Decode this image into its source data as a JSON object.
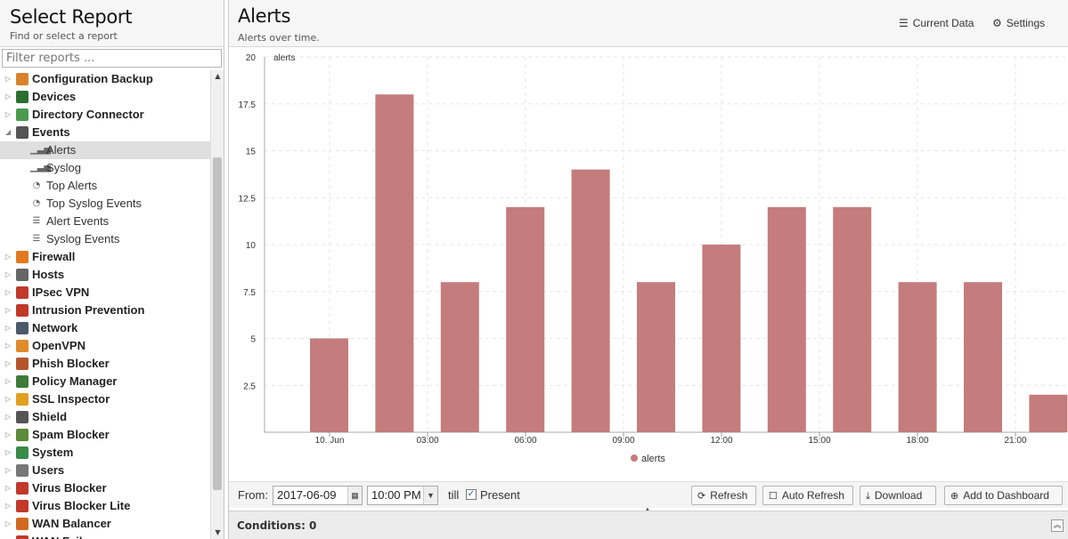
{
  "left": {
    "title": "Select Report",
    "subtitle": "Find or select a report",
    "filter_placeholder": "Filter reports ...",
    "items": [
      {
        "label": "Configuration Backup",
        "level": "top",
        "expanded": false,
        "color": "#d9822b",
        "icon": "backup-icon"
      },
      {
        "label": "Devices",
        "level": "top",
        "expanded": false,
        "color": "#2c6e2f",
        "icon": "devices-icon"
      },
      {
        "label": "Directory Connector",
        "level": "top",
        "expanded": false,
        "color": "#4a9b4f",
        "icon": "directory-icon"
      },
      {
        "label": "Events",
        "level": "top",
        "expanded": true,
        "color": "#555555",
        "icon": "events-icon"
      },
      {
        "label": "Alerts",
        "level": "child",
        "selected": true,
        "glyph": "▁▃▅",
        "icon": "bar-chart-icon"
      },
      {
        "label": "Syslog",
        "level": "child",
        "glyph": "▁▃▅",
        "icon": "bar-chart-icon"
      },
      {
        "label": "Top Alerts",
        "level": "child",
        "glyph": "◔",
        "icon": "pie-chart-icon"
      },
      {
        "label": "Top Syslog Events",
        "level": "child",
        "glyph": "◔",
        "icon": "pie-chart-icon"
      },
      {
        "label": "Alert Events",
        "level": "child",
        "glyph": "☰",
        "icon": "list-icon"
      },
      {
        "label": "Syslog Events",
        "level": "child",
        "glyph": "☰",
        "icon": "list-icon"
      },
      {
        "label": "Firewall",
        "level": "top",
        "expanded": false,
        "color": "#e27a1f",
        "icon": "firewall-icon"
      },
      {
        "label": "Hosts",
        "level": "top",
        "expanded": false,
        "color": "#666666",
        "icon": "hosts-icon"
      },
      {
        "label": "IPsec VPN",
        "level": "top",
        "expanded": false,
        "color": "#c0392b",
        "icon": "lock-icon"
      },
      {
        "label": "Intrusion Prevention",
        "level": "top",
        "expanded": false,
        "color": "#c0392b",
        "icon": "intrusion-icon"
      },
      {
        "label": "Network",
        "level": "top",
        "expanded": false,
        "color": "#4a5a6a",
        "icon": "network-icon"
      },
      {
        "label": "OpenVPN",
        "level": "top",
        "expanded": false,
        "color": "#e08a2c",
        "icon": "openvpn-icon"
      },
      {
        "label": "Phish Blocker",
        "level": "top",
        "expanded": false,
        "color": "#b5542a",
        "icon": "phish-icon"
      },
      {
        "label": "Policy Manager",
        "level": "top",
        "expanded": false,
        "color": "#3f7a3a",
        "icon": "policy-icon"
      },
      {
        "label": "SSL Inspector",
        "level": "top",
        "expanded": false,
        "color": "#e0a020",
        "icon": "ssl-icon"
      },
      {
        "label": "Shield",
        "level": "top",
        "expanded": false,
        "color": "#555555",
        "icon": "shield-icon"
      },
      {
        "label": "Spam Blocker",
        "level": "top",
        "expanded": false,
        "color": "#5a8a3a",
        "icon": "spam-icon"
      },
      {
        "label": "System",
        "level": "top",
        "expanded": false,
        "color": "#3a8a4a",
        "icon": "system-icon"
      },
      {
        "label": "Users",
        "level": "top",
        "expanded": false,
        "color": "#777777",
        "icon": "users-icon"
      },
      {
        "label": "Virus Blocker",
        "level": "top",
        "expanded": false,
        "color": "#c0392b",
        "icon": "virus-icon"
      },
      {
        "label": "Virus Blocker Lite",
        "level": "top",
        "expanded": false,
        "color": "#c0392b",
        "icon": "virus-icon"
      },
      {
        "label": "WAN Balancer",
        "level": "top",
        "expanded": false,
        "color": "#d2691e",
        "icon": "wan-icon"
      },
      {
        "label": "WAN Failover",
        "level": "top",
        "expanded": false,
        "color": "#c0392b",
        "icon": "wan-icon"
      }
    ]
  },
  "right": {
    "title": "Alerts",
    "subtitle": "Alerts over time.",
    "current_data_label": "Current Data",
    "settings_label": "Settings"
  },
  "toolbar": {
    "from_label": "From:",
    "date_value": "2017-06-09",
    "time_value": "10:00 PM",
    "till_label": "till",
    "present_label": "Present",
    "present_checked": true,
    "refresh_label": "Refresh",
    "auto_refresh_label": "Auto Refresh",
    "download_label": "Download",
    "add_dashboard_label": "Add to Dashboard"
  },
  "conditions_label": "Conditions: 0",
  "chart_data": {
    "type": "bar",
    "ylabel": "alerts",
    "ylim": [
      0,
      20
    ],
    "yticks": [
      "2.5",
      "5",
      "7.5",
      "10",
      "12.5",
      "15",
      "17.5",
      "20"
    ],
    "xtick_labels": [
      "10. Jun",
      "03:00",
      "06:00",
      "09:00",
      "12:00",
      "15:00",
      "18:00",
      "21:00"
    ],
    "color": "#c47c7c",
    "series": [
      {
        "name": "alerts",
        "values": [
          5,
          18,
          8,
          12,
          14,
          8,
          10,
          12,
          12,
          8,
          8,
          2
        ]
      }
    ],
    "legend_position": "bottom-center",
    "grid": true
  }
}
